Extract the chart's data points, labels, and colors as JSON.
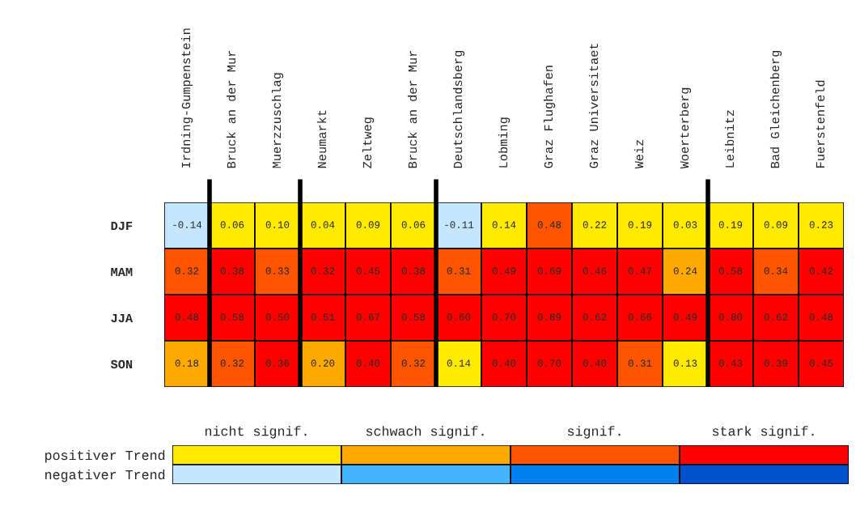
{
  "chart_data": [
    {
      "type": "heatmap",
      "categories": [
        "Irdning-Gumpenstein",
        "Bruck an der Mur",
        "Muerzzuschlag",
        "Neumarkt",
        "Zeltweg",
        "Bruck an der Mur",
        "Deutschlandsberg",
        "Lobming",
        "Graz Flughafen",
        "Graz Universitaet",
        "Weiz",
        "Woerterberg",
        "Leibnitz",
        "Bad Gleichenberg",
        "Fuerstenfeld"
      ],
      "y_categories": [
        "DJF",
        "MAM",
        "JJA",
        "SON"
      ],
      "cells": [
        [
          -0.14,
          0.06,
          0.1,
          0.04,
          0.09,
          0.06,
          -0.11,
          0.14,
          0.48,
          0.22,
          0.19,
          0.03,
          0.19,
          0.09,
          0.23
        ],
        [
          0.32,
          0.38,
          0.33,
          0.32,
          0.45,
          0.38,
          0.31,
          0.49,
          0.69,
          0.46,
          0.47,
          0.24,
          0.58,
          0.34,
          0.42
        ],
        [
          0.48,
          0.58,
          0.5,
          0.51,
          0.67,
          0.58,
          0.6,
          0.7,
          0.89,
          0.62,
          0.66,
          0.49,
          0.8,
          0.62,
          0.48
        ],
        [
          0.18,
          0.32,
          0.36,
          0.2,
          0.4,
          0.32,
          0.14,
          0.4,
          0.7,
          0.4,
          0.31,
          0.13,
          0.43,
          0.39,
          0.45
        ]
      ],
      "colors": [
        [
          "#c4e6ff",
          "#ffea00",
          "#ffea00",
          "#ffea00",
          "#ffea00",
          "#ffea00",
          "#c4e6ff",
          "#ffea00",
          "#ff5500",
          "#ffea00",
          "#ffea00",
          "#ffea00",
          "#ffea00",
          "#ffea00",
          "#ffea00"
        ],
        [
          "#ff5500",
          "#ff0000",
          "#ff5500",
          "#ff0000",
          "#ff0000",
          "#ff0000",
          "#ff5500",
          "#ff0000",
          "#ff0000",
          "#ff0000",
          "#ff0000",
          "#ffaa00",
          "#ff0000",
          "#ff5500",
          "#ff0000"
        ],
        [
          "#ff0000",
          "#ff0000",
          "#ff0000",
          "#ff0000",
          "#ff0000",
          "#ff0000",
          "#ff0000",
          "#ff0000",
          "#ff0000",
          "#ff0000",
          "#ff0000",
          "#ff0000",
          "#ff0000",
          "#ff0000",
          "#ff0000"
        ],
        [
          "#ffaa00",
          "#ff5500",
          "#ff0000",
          "#ffaa00",
          "#ff0000",
          "#ff5500",
          "#ffea00",
          "#ff0000",
          "#ff0000",
          "#ff0000",
          "#ff5500",
          "#ffea00",
          "#ff0000",
          "#ff0000",
          "#ff0000"
        ]
      ],
      "cell_labels": [
        [
          "-0.14",
          "0.06",
          "0.10",
          "0.04",
          "0.09",
          "0.06",
          "-0.11",
          "0.14",
          "0.48",
          "0.22",
          "0.19",
          "0.03",
          "0.19",
          "0.09",
          "0.23"
        ],
        [
          "0.32",
          "0.38",
          "0.33",
          "0.32",
          "0.45",
          "0.38",
          "0.31",
          "0.49",
          "0.69",
          "0.46",
          "0.47",
          "0.24",
          "0.58",
          "0.34",
          "0.42"
        ],
        [
          "0.48",
          "0.58",
          "0.50",
          "0.51",
          "0.67",
          "0.58",
          "0.60",
          "0.70",
          "0.89",
          "0.62",
          "0.66",
          "0.49",
          "0.80",
          "0.62",
          "0.48"
        ],
        [
          "0.18",
          "0.32",
          "0.36",
          "0.20",
          "0.40",
          "0.32",
          "0.14",
          "0.40",
          "0.70",
          "0.40",
          "0.31",
          "0.13",
          "0.43",
          "0.39",
          "0.45"
        ]
      ]
    },
    {
      "type": "other",
      "categories": [
        "nicht signif.",
        "schwach signif.",
        "signif.",
        "stark signif."
      ],
      "y_categories": [
        "positiver Trend",
        "negativer Trend"
      ],
      "colors": [
        [
          "#ffea00",
          "#ffaa00",
          "#ff5500",
          "#ff0000"
        ],
        [
          "#c4e6ff",
          "#44b4ff",
          "#0080ee",
          "#0050cc"
        ]
      ]
    }
  ]
}
